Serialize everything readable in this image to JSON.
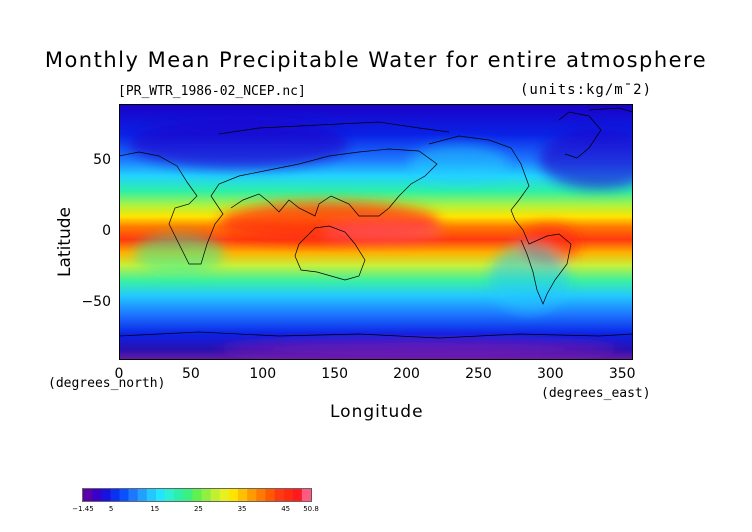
{
  "title": "Monthly Mean Precipitable Water for entire atmosphere",
  "file_label": "[PR_WTR_1986-02_NCEP.nc]",
  "units_label": "(units:kg/m¯2)",
  "chart_data": {
    "type": "heatmap",
    "xlabel": "Longitude",
    "ylabel": "Latitude",
    "x_unit_note": "(degrees_east)",
    "y_unit_note": "(degrees_north)",
    "xlim": [
      0,
      357.5
    ],
    "ylim": [
      -90,
      90
    ],
    "x_ticks": [
      0,
      50,
      100,
      150,
      200,
      250,
      300,
      350
    ],
    "y_ticks": [
      50,
      0,
      -50
    ],
    "colorbar": {
      "min": -1.45,
      "max": 50.8,
      "tick_labels": [
        "-1.45",
        "5",
        "15",
        "25",
        "35",
        "45",
        "50.8"
      ],
      "tick_values": [
        -1.45,
        5,
        15,
        25,
        35,
        45,
        50.8
      ]
    },
    "zonal_profile_lat": [
      90,
      80,
      70,
      60,
      50,
      40,
      30,
      20,
      10,
      0,
      -10,
      -20,
      -30,
      -40,
      -50,
      -60,
      -70,
      -80,
      -90
    ],
    "zonal_profile_value": [
      6,
      5,
      6,
      9,
      13,
      19,
      26,
      33,
      42,
      46,
      44,
      36,
      27,
      21,
      15,
      11,
      8,
      3,
      1
    ]
  }
}
